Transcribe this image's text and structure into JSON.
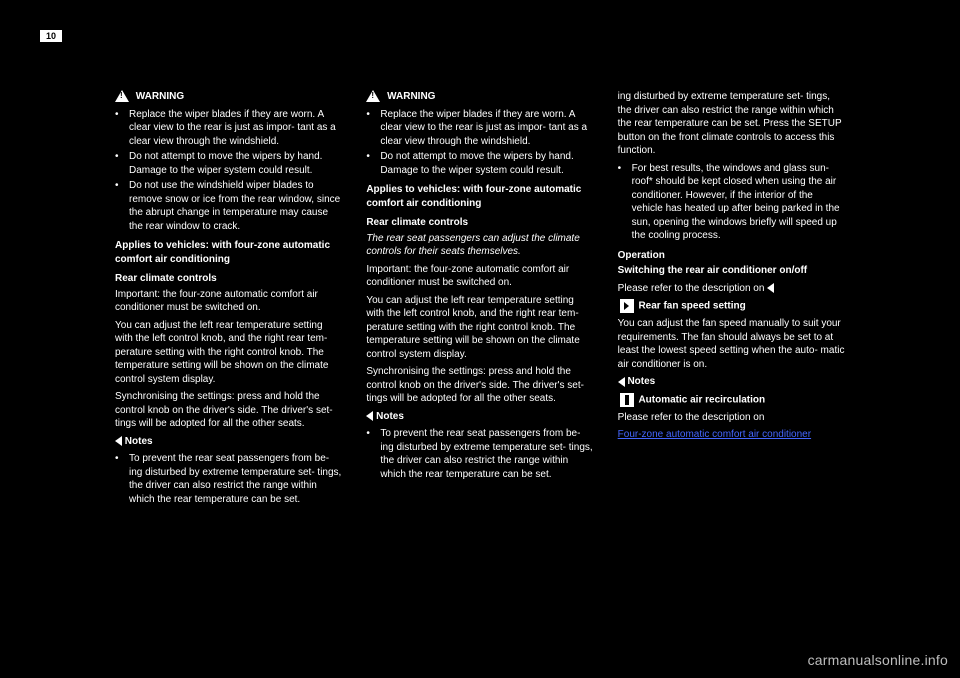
{
  "pageNumBox": "10",
  "col1": {
    "warnLabel": "WARNING",
    "b1": "Replace the wiper blades if they are worn. A clear view to the rear is just as impor- tant as a clear view through the windshield.",
    "b2": "Do not attempt to move the wipers by hand. Damage to the wiper system could result.",
    "b3": "Do not use the windshield wiper blades to remove snow or ice from the rear window, since the abrupt change in temperature may cause the rear window to crack.",
    "head1": "Applies to vehicles: with four-zone automatic comfort air conditioning",
    "head2": "Rear climate controls",
    "p1": "Important: the four-zone automatic comfort air conditioner must be switched on.",
    "p2": "You can adjust the left rear temperature setting with the left control knob, and the right rear tem- perature setting with the right control knob. The temperature setting will be shown on the climate control system display.",
    "p3": "Synchronising the settings: press and hold the control knob on the driver's side. The driver's set- tings will be adopted for all the other seats.",
    "pointer": "Notes",
    "note1": "To prevent the rear seat passengers from be- ing disturbed by extreme temperature set- tings, the driver can also restrict the range within which the rear temperature can be set."
  },
  "col2": {
    "warnLabel": "WARNING",
    "b1": "Replace the wiper blades if they are worn. A clear view to the rear is just as impor- tant as a clear view through the windshield.",
    "b2": "Do not attempt to move the wipers by hand. Damage to the wiper system could result.",
    "head1": "Applies to vehicles: with four-zone automatic comfort air conditioning",
    "head2": "Rear climate controls",
    "p1": "The rear seat passengers can adjust the climate controls for their seats themselves.",
    "p2": "Important: the four-zone automatic comfort air conditioner must be switched on.",
    "p3": "You can adjust the left rear temperature setting with the left control knob, and the right rear tem- perature setting with the right control knob. The temperature setting will be shown on the climate control system display.",
    "p4": "Synchronising the settings: press and hold the control knob on the driver's side. The driver's set- tings will be adopted for all the other seats.",
    "pointer": "Notes",
    "note1": "To prevent the rear seat passengers from be- ing disturbed by extreme temperature set- tings, the driver can also restrict the range within which the rear temperature can be set."
  },
  "col3": {
    "p1": "ing disturbed by extreme temperature set- tings, the driver can also restrict the range within which the rear temperature can be set. Press the SETUP button on the front climate controls to access this function.",
    "p2": "For best results, the windows and glass sun- roof* should be kept closed when using the air conditioner. However, if the interior of the vehicle has heated up after being parked in the sun, opening the windows briefly will speed up the cooling process.",
    "head1": "Operation",
    "sec1h": "Switching the rear air conditioner on/off",
    "sec1p": "Please refer to the description on",
    "iconNote1": "Rear fan speed setting",
    "fanP": "You can adjust the fan speed manually to suit your requirements. The fan should always be set to at least the lowest speed setting when the auto- matic air conditioner is on.",
    "pointer2": "Notes",
    "autoH": "Automatic air recirculation",
    "autoP": "Please refer to the description on",
    "linkText": "Four-zone automatic comfort air conditioner"
  },
  "watermark": "carmanualsonline.info"
}
